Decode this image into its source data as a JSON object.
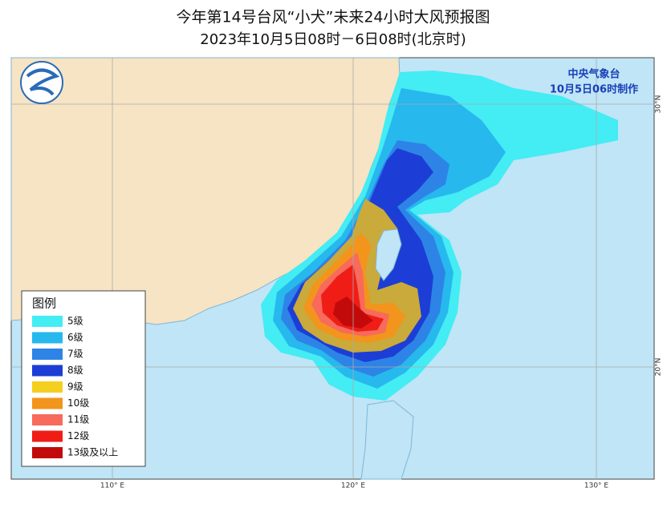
{
  "header": {
    "title": "今年第14号台风“小犬”未来24小时大风预报图",
    "subtitle": "2023年10月5日08时－6日08时(北京时)"
  },
  "agency": {
    "name": "中央气象台",
    "issued": "10月5日06时制作"
  },
  "legend": {
    "title": "图例",
    "items": [
      {
        "label": "5级",
        "color": "#44ecf4"
      },
      {
        "label": "6级",
        "color": "#27b8ee"
      },
      {
        "label": "7级",
        "color": "#2d84e6"
      },
      {
        "label": "8级",
        "color": "#1c3ed6"
      },
      {
        "label": "9级",
        "color": "#f5cf1f"
      },
      {
        "label": "10级",
        "color": "#f3941c"
      },
      {
        "label": "11级",
        "color": "#f76a5c"
      },
      {
        "label": "12级",
        "color": "#f01d17"
      },
      {
        "label": "13级及以上",
        "color": "#c20a0a"
      }
    ]
  },
  "axes": {
    "lon_labels": [
      "110° E",
      "120° E",
      "130° E"
    ],
    "lat_labels": [
      "30°N",
      "20°N"
    ]
  }
}
